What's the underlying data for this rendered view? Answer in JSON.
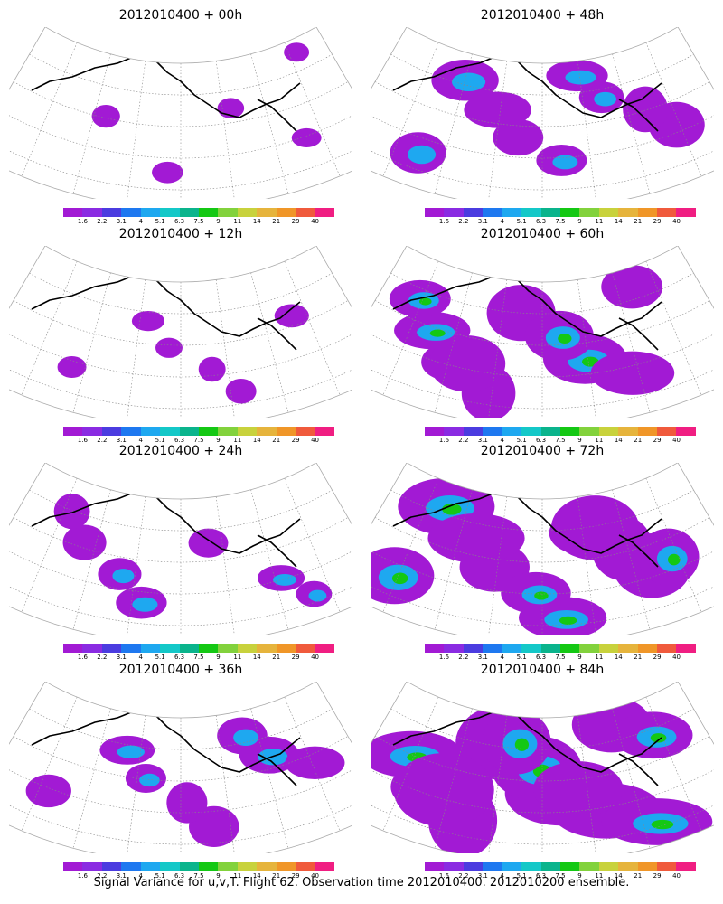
{
  "colorbar": {
    "colors": [
      "#a21ad4",
      "#8a2be2",
      "#4b3ce0",
      "#1e78f0",
      "#1ea8f0",
      "#14c8c8",
      "#0ab48c",
      "#14c814",
      "#82d23c",
      "#c8d23c",
      "#e6b43c",
      "#f09628",
      "#f05a3c",
      "#f01e82"
    ],
    "ticks": [
      "1.6",
      "2.2",
      "3.1",
      "4",
      "5.1",
      "6.3",
      "7.5",
      "9",
      "11",
      "14",
      "21",
      "29",
      "40"
    ]
  },
  "panels": [
    {
      "title": "2012010400 + 00h",
      "coverage": 0.12
    },
    {
      "title": "2012010400 + 48h",
      "coverage": 0.45
    },
    {
      "title": "2012010400 + 12h",
      "coverage": 0.15
    },
    {
      "title": "2012010400 + 60h",
      "coverage": 0.6
    },
    {
      "title": "2012010400 + 24h",
      "coverage": 0.3
    },
    {
      "title": "2012010400 + 72h",
      "coverage": 0.72
    },
    {
      "title": "2012010400 + 36h",
      "coverage": 0.38
    },
    {
      "title": "2012010400 + 84h",
      "coverage": 0.85
    }
  ],
  "footer": "Signal Variance for u,v,T. Flight 62. Observation time 2012010400. 2012010200 ensemble."
}
